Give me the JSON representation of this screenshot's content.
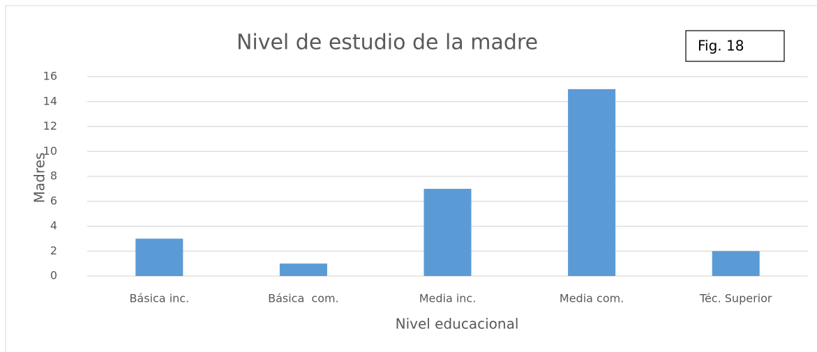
{
  "chart_data": {
    "type": "bar",
    "title": "Nivel de estudio de la madre",
    "annotation": "Fig. 18",
    "x_label": "Nivel educacional",
    "y_label": "Madres",
    "categories": [
      "Básica inc.",
      "Básica  com.",
      "Media inc.",
      "Media com.",
      "Téc. Superior"
    ],
    "values": [
      3,
      1,
      7,
      15,
      2
    ],
    "color": "#5b9bd5",
    "ylim": [
      0,
      16
    ],
    "yticks": [
      0,
      2,
      4,
      6,
      8,
      10,
      12,
      14,
      16
    ],
    "grid": true
  }
}
